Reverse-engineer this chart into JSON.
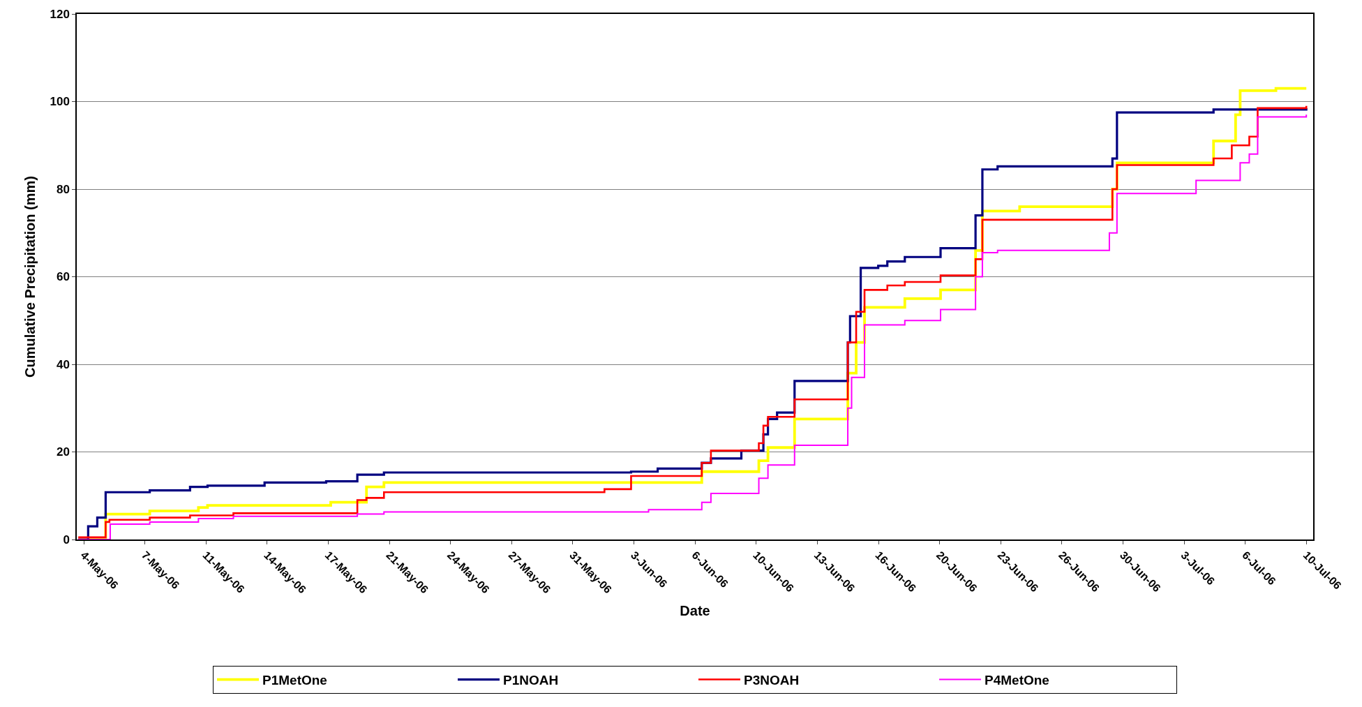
{
  "chart_data": {
    "type": "step",
    "xlabel": "Date",
    "ylabel": "Cumulative Precipitation (mm)",
    "ylim": [
      0,
      120
    ],
    "yticks": [
      0,
      20,
      40,
      60,
      80,
      100,
      120
    ],
    "xlim": [
      "--05-03T22:00",
      "--07-10T16:00"
    ],
    "xticks": [
      {
        "value": "--05-04T07:12",
        "label": "4-May-06"
      },
      {
        "value": "--05-07T15:36",
        "label": "7-May-06"
      },
      {
        "value": "--05-11T00:00",
        "label": "11-May-06"
      },
      {
        "value": "--05-14T08:24",
        "label": "14-May-06"
      },
      {
        "value": "--05-17T16:48",
        "label": "17-May-06"
      },
      {
        "value": "--05-21T01:12",
        "label": "21-May-06"
      },
      {
        "value": "--05-24T09:36",
        "label": "24-May-06"
      },
      {
        "value": "--05-27T18:00",
        "label": "27-May-06"
      },
      {
        "value": "--05-31T02:24",
        "label": "31-May-06"
      },
      {
        "value": "--06-03T10:48",
        "label": "3-Jun-06"
      },
      {
        "value": "--06-06T19:12",
        "label": "6-Jun-06"
      },
      {
        "value": "--06-10T03:36",
        "label": "10-Jun-06"
      },
      {
        "value": "--06-13T12:00",
        "label": "13-Jun-06"
      },
      {
        "value": "--06-16T20:24",
        "label": "16-Jun-06"
      },
      {
        "value": "--06-20T04:48",
        "label": "20-Jun-06"
      },
      {
        "value": "--06-23T13:12",
        "label": "23-Jun-06"
      },
      {
        "value": "--06-26T21:36",
        "label": "26-Jun-06"
      },
      {
        "value": "--06-30T06:00",
        "label": "30-Jun-06"
      },
      {
        "value": "--07-03T14:24",
        "label": "3-Jul-06"
      },
      {
        "value": "--07-06T22:48",
        "label": "6-Jul-06"
      },
      {
        "value": "--07-10T07:12",
        "label": "10-Jul-06"
      }
    ],
    "grid": "y",
    "legend": "bottom",
    "marker": "none",
    "line_style": "solid",
    "series": [
      {
        "name": "P1MetOne",
        "color": "#ffff00",
        "x": [
          "--05-04T00:00",
          "--05-05T12:00",
          "--05-07T22:00",
          "--05-10T14:00",
          "--05-11T02:00",
          "--05-17T20:00",
          "--05-19T19:00",
          "--05-20T18:00",
          "--06-07T04:00",
          "--06-10T07:00",
          "--06-10T19:00",
          "--06-12T06:00",
          "--06-15T04:00",
          "--06-15T15:00",
          "--06-16T02:00",
          "--06-18T07:00",
          "--06-20T06:00",
          "--06-22T04:00",
          "--06-22T13:00",
          "--06-24T14:00",
          "--06-29T16:00",
          "--06-29T22:00",
          "--07-05T05:00",
          "--07-06T10:00",
          "--07-06T16:00",
          "--07-08T15:00",
          "--07-10T07:00"
        ],
        "values": [
          0,
          5.8,
          6.5,
          7.3,
          7.8,
          8.5,
          12,
          13,
          15.5,
          18,
          21,
          27.5,
          38,
          45,
          53,
          55,
          57,
          66,
          75,
          76,
          80,
          86,
          91,
          97,
          102.5,
          103,
          103
        ]
      },
      {
        "name": "P1NOAH",
        "color": "#000080",
        "x": [
          "--05-04T00:00",
          "--05-04T13:00",
          "--05-05T01:00",
          "--05-05T12:00",
          "--05-07T22:00",
          "--05-10T03:00",
          "--05-11T02:00",
          "--05-14T05:00",
          "--05-17T14:00",
          "--05-19T07:00",
          "--05-20T18:00",
          "--06-03T07:00",
          "--06-04T18:00",
          "--06-07T04:00",
          "--06-07T16:00",
          "--06-09T08:00",
          "--06-10T13:00",
          "--06-10T19:00",
          "--06-11T07:00",
          "--06-12T06:00",
          "--06-15T04:00",
          "--06-15T07:00",
          "--06-15T21:00",
          "--06-16T20:00",
          "--06-17T08:00",
          "--06-18T07:00",
          "--06-20T06:00",
          "--06-22T04:00",
          "--06-22T13:00",
          "--06-23T09:00",
          "--06-29T16:00",
          "--06-29T22:00",
          "--07-05T05:00",
          "--07-10T07:00"
        ],
        "values": [
          0,
          3,
          5,
          10.8,
          11.2,
          12,
          12.3,
          13,
          13.3,
          14.8,
          15.3,
          15.5,
          16.2,
          17.5,
          18.5,
          20.3,
          24,
          27.5,
          29,
          36.2,
          45,
          51,
          62,
          62.5,
          63.5,
          64.5,
          66.5,
          74,
          84.5,
          85.2,
          87,
          97.5,
          98.2,
          98.5
        ]
      },
      {
        "name": "P3NOAH",
        "color": "#ff0000",
        "x": [
          "--05-04T00:00",
          "--05-05T12:00",
          "--05-05T17:00",
          "--05-07T22:00",
          "--05-10T03:00",
          "--05-12T12:00",
          "--05-19T07:00",
          "--05-19T19:00",
          "--05-20T18:00",
          "--06-01T20:00",
          "--06-03T07:00",
          "--06-07T04:00",
          "--06-07T16:00",
          "--06-10T07:00",
          "--06-10T13:00",
          "--06-10T19:00",
          "--06-12T06:00",
          "--06-15T04:00",
          "--06-15T15:00",
          "--06-16T02:00",
          "--06-17T08:00",
          "--06-18T07:00",
          "--06-20T06:00",
          "--06-22T04:00",
          "--06-22T13:00",
          "--06-29T16:00",
          "--06-29T22:00",
          "--07-05T05:00",
          "--07-06T05:00",
          "--07-07T04:00",
          "--07-07T15:00",
          "--07-10T07:00"
        ],
        "values": [
          0.5,
          4,
          4.5,
          5,
          5.5,
          6,
          9,
          9.5,
          10.8,
          11.5,
          14.5,
          17.5,
          20.3,
          22,
          26,
          28,
          32,
          45,
          52,
          57,
          58,
          58.8,
          60.3,
          64,
          73,
          80,
          85.5,
          87,
          90,
          92,
          98.5,
          99
        ]
      },
      {
        "name": "P4MetOne",
        "color": "#ff00ff",
        "x": [
          "--05-04T00:00",
          "--05-05T18:00",
          "--05-07T22:00",
          "--05-10T14:00",
          "--05-12T12:00",
          "--05-19T07:00",
          "--05-20T18:00",
          "--06-04T06:00",
          "--06-07T04:00",
          "--06-07T16:00",
          "--06-10T07:00",
          "--06-10T19:00",
          "--06-12T06:00",
          "--06-15T04:00",
          "--06-15T09:00",
          "--06-16T02:00",
          "--06-18T07:00",
          "--06-20T06:00",
          "--06-22T04:00",
          "--06-22T13:00",
          "--06-23T09:00",
          "--06-29T12:00",
          "--06-29T22:00",
          "--07-04T06:00",
          "--07-06T16:00",
          "--07-07T04:00",
          "--07-07T15:00",
          "--07-10T07:00"
        ],
        "values": [
          0,
          3.5,
          4,
          4.8,
          5.3,
          5.8,
          6.3,
          6.8,
          8.5,
          10.5,
          14,
          17,
          21.5,
          30,
          37,
          49,
          50,
          52.5,
          60,
          65.5,
          66,
          70,
          79,
          82,
          86,
          88,
          96.5,
          97
        ]
      }
    ]
  }
}
